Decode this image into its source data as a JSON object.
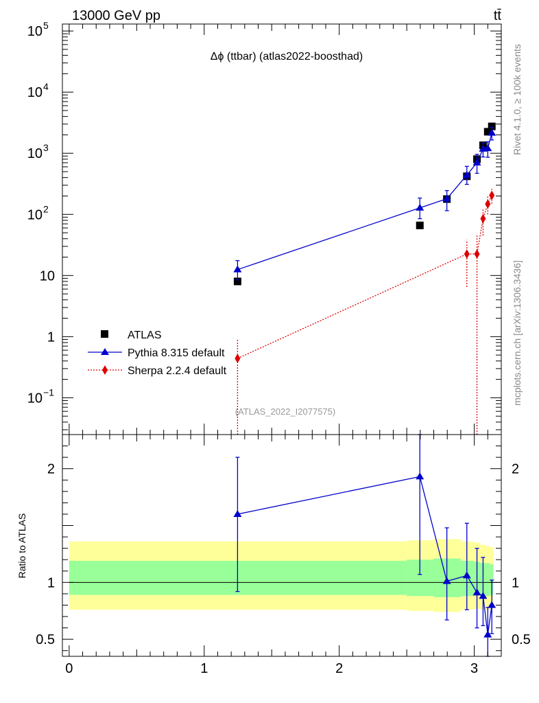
{
  "header": {
    "energy_label": "13000 GeV pp",
    "process_label": "tt̄"
  },
  "side_labels": {
    "rivet": "Rivet 4.1.0, ≥ 100k events",
    "mcplots": "mcplots.cern.ch [arXiv:1306.3436]"
  },
  "chart_data": [
    {
      "type": "line",
      "panel": "main",
      "title": "Δϕ (ttbar) (atlas2022-boosthad)",
      "watermark": "(ATLAS_2022_I2077575)",
      "yscale": "log",
      "xlim": [
        -0.05,
        3.2
      ],
      "ylim": [
        0.025,
        130000
      ],
      "y_ticks": [
        {
          "value": 0.1,
          "label": "10",
          "exp": "−1"
        },
        {
          "value": 1,
          "label": "1",
          "exp": ""
        },
        {
          "value": 10,
          "label": "10",
          "exp": ""
        },
        {
          "value": 100,
          "label": "10",
          "exp": "2"
        },
        {
          "value": 1000,
          "label": "10",
          "exp": "3"
        },
        {
          "value": 10000,
          "label": "10",
          "exp": "4"
        },
        {
          "value": 100000,
          "label": "10",
          "exp": "5"
        }
      ],
      "legend": [
        {
          "name": "ATLAS",
          "marker": "square",
          "color": "#000000"
        },
        {
          "name": "Pythia 8.315 default",
          "marker": "triangle",
          "color": "#0000cc"
        },
        {
          "name": "Sherpa 2.2.4 default",
          "marker": "diamond",
          "color": "#dd0000"
        }
      ],
      "series": [
        {
          "name": "ATLAS",
          "color": "#000000",
          "style": "points",
          "points": [
            {
              "x": 1.247,
              "y": 8.0
            },
            {
              "x": 2.597,
              "y": 66
            },
            {
              "x": 2.797,
              "y": 178
            },
            {
              "x": 2.945,
              "y": 420
            },
            {
              "x": 3.02,
              "y": 800
            },
            {
              "x": 3.065,
              "y": 1350
            },
            {
              "x": 3.1,
              "y": 2250
            },
            {
              "x": 3.13,
              "y": 2750
            }
          ]
        },
        {
          "name": "Pythia 8.315 default",
          "color": "#0000cc",
          "style": "solid",
          "points": [
            {
              "x": 1.247,
              "y": 12.5,
              "lo": 8.5,
              "hi": 17.5
            },
            {
              "x": 2.597,
              "y": 128,
              "lo": 85,
              "hi": 185
            },
            {
              "x": 2.797,
              "y": 180,
              "lo": 115,
              "hi": 245
            },
            {
              "x": 2.945,
              "y": 440,
              "lo": 310,
              "hi": 610
            },
            {
              "x": 3.02,
              "y": 700,
              "lo": 470,
              "hi": 960
            },
            {
              "x": 3.065,
              "y": 1180,
              "lo": 870,
              "hi": 1480
            },
            {
              "x": 3.1,
              "y": 1200,
              "lo": 860,
              "hi": 1540
            },
            {
              "x": 3.13,
              "y": 2150,
              "lo": 1650,
              "hi": 2650
            }
          ]
        },
        {
          "name": "Sherpa 2.2.4 default",
          "color": "#dd0000",
          "style": "dotted",
          "points": [
            {
              "x": 1.247,
              "y": 0.44,
              "lo": 0.02,
              "hi": 0.9
            },
            {
              "x": 2.945,
              "y": 22.5,
              "lo": 6.5,
              "hi": 38
            },
            {
              "x": 3.02,
              "y": 22.5,
              "lo": 0.02,
              "hi": 45
            },
            {
              "x": 3.065,
              "y": 85,
              "lo": 45,
              "hi": 125
            },
            {
              "x": 3.1,
              "y": 148,
              "lo": 100,
              "hi": 196
            },
            {
              "x": 3.13,
              "y": 205,
              "lo": 150,
              "hi": 262
            }
          ]
        }
      ]
    },
    {
      "type": "line",
      "panel": "ratio",
      "ylabel": "Ratio to ATLAS",
      "yscale": "linear",
      "xlim": [
        -0.05,
        3.2
      ],
      "ylim": [
        0.35,
        2.3
      ],
      "x_ticks": [
        {
          "value": 0,
          "label": "0"
        },
        {
          "value": 1,
          "label": "1"
        },
        {
          "value": 2,
          "label": "2"
        },
        {
          "value": 3,
          "label": "3"
        }
      ],
      "y_ticks": [
        {
          "value": 0.5,
          "label": "0.5"
        },
        {
          "value": 1,
          "label": "1"
        },
        {
          "value": 2,
          "label": "2"
        }
      ],
      "bands": {
        "yellow": {
          "color": "#ffff99",
          "edges": [
            0,
            2.5,
            2.7,
            2.9,
            3.0,
            3.045,
            3.085,
            3.115,
            3.1416
          ],
          "lo": [
            0.76,
            0.75,
            0.74,
            0.76,
            0.77,
            0.76,
            0.76,
            0.77
          ],
          "hi": [
            1.36,
            1.37,
            1.38,
            1.36,
            1.35,
            1.33,
            1.32,
            1.31
          ]
        },
        "green": {
          "color": "#99ff99",
          "edges": [
            0,
            2.5,
            2.7,
            2.9,
            3.0,
            3.045,
            3.085,
            3.115,
            3.1416
          ],
          "lo": [
            0.89,
            0.88,
            0.87,
            0.88,
            0.89,
            0.88,
            0.88,
            0.89
          ],
          "hi": [
            1.19,
            1.2,
            1.21,
            1.19,
            1.18,
            1.17,
            1.17,
            1.16
          ]
        }
      },
      "reference_line": 1.0,
      "series": [
        {
          "name": "Pythia 8.315 default",
          "color": "#0000cc",
          "style": "solid",
          "points": [
            {
              "x": 1.247,
              "y": 1.6,
              "lo": 0.92,
              "hi": 2.1
            },
            {
              "x": 2.597,
              "y": 1.93,
              "lo": 1.07,
              "hi": 2.35
            },
            {
              "x": 2.797,
              "y": 1.01,
              "lo": 0.67,
              "hi": 1.48
            },
            {
              "x": 2.945,
              "y": 1.06,
              "lo": 0.76,
              "hi": 1.52
            },
            {
              "x": 3.02,
              "y": 0.91,
              "lo": 0.6,
              "hi": 1.3
            },
            {
              "x": 3.065,
              "y": 0.88,
              "lo": 0.62,
              "hi": 1.22
            },
            {
              "x": 3.1,
              "y": 0.54,
              "lo": 0.35,
              "hi": 0.78
            },
            {
              "x": 3.13,
              "y": 0.8,
              "lo": 0.55,
              "hi": 1.02
            }
          ]
        }
      ]
    }
  ]
}
